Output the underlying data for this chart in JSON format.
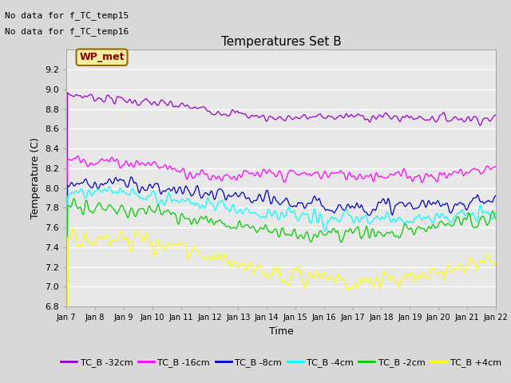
{
  "title": "Temperatures Set B",
  "xlabel": "Time",
  "ylabel": "Temperature (C)",
  "ylim": [
    6.8,
    9.4
  ],
  "yticks": [
    6.8,
    7.0,
    7.2,
    7.4,
    7.6,
    7.8,
    8.0,
    8.2,
    8.4,
    8.6,
    8.8,
    9.0,
    9.2
  ],
  "xtick_labels": [
    "Jan 7",
    "Jan 8",
    "Jan 9",
    "Jan 10",
    "Jan 11",
    "Jan 12",
    "Jan 13",
    "Jan 14",
    "Jan 15",
    "Jan 16",
    "Jan 17",
    "Jan 18",
    "Jan 19",
    "Jan 20",
    "Jan 21",
    "Jan 22"
  ],
  "no_data_lines": [
    "No data for f_TC_temp15",
    "No data for f_TC_temp16"
  ],
  "wp_met_label": "WP_met",
  "series": [
    {
      "label": "TC_B -32cm",
      "color": "#9900cc"
    },
    {
      "label": "TC_B -16cm",
      "color": "#ff00ff"
    },
    {
      "label": "TC_B -8cm",
      "color": "#0000cc"
    },
    {
      "label": "TC_B -4cm",
      "color": "#00ffff"
    },
    {
      "label": "TC_B -2cm",
      "color": "#00cc00"
    },
    {
      "label": "TC_B +4cm",
      "color": "#ffff00"
    }
  ],
  "n_points": 400,
  "background_color": "#d8d8d8",
  "plot_bg": "#e8e8e8",
  "grid_color": "#ffffff"
}
